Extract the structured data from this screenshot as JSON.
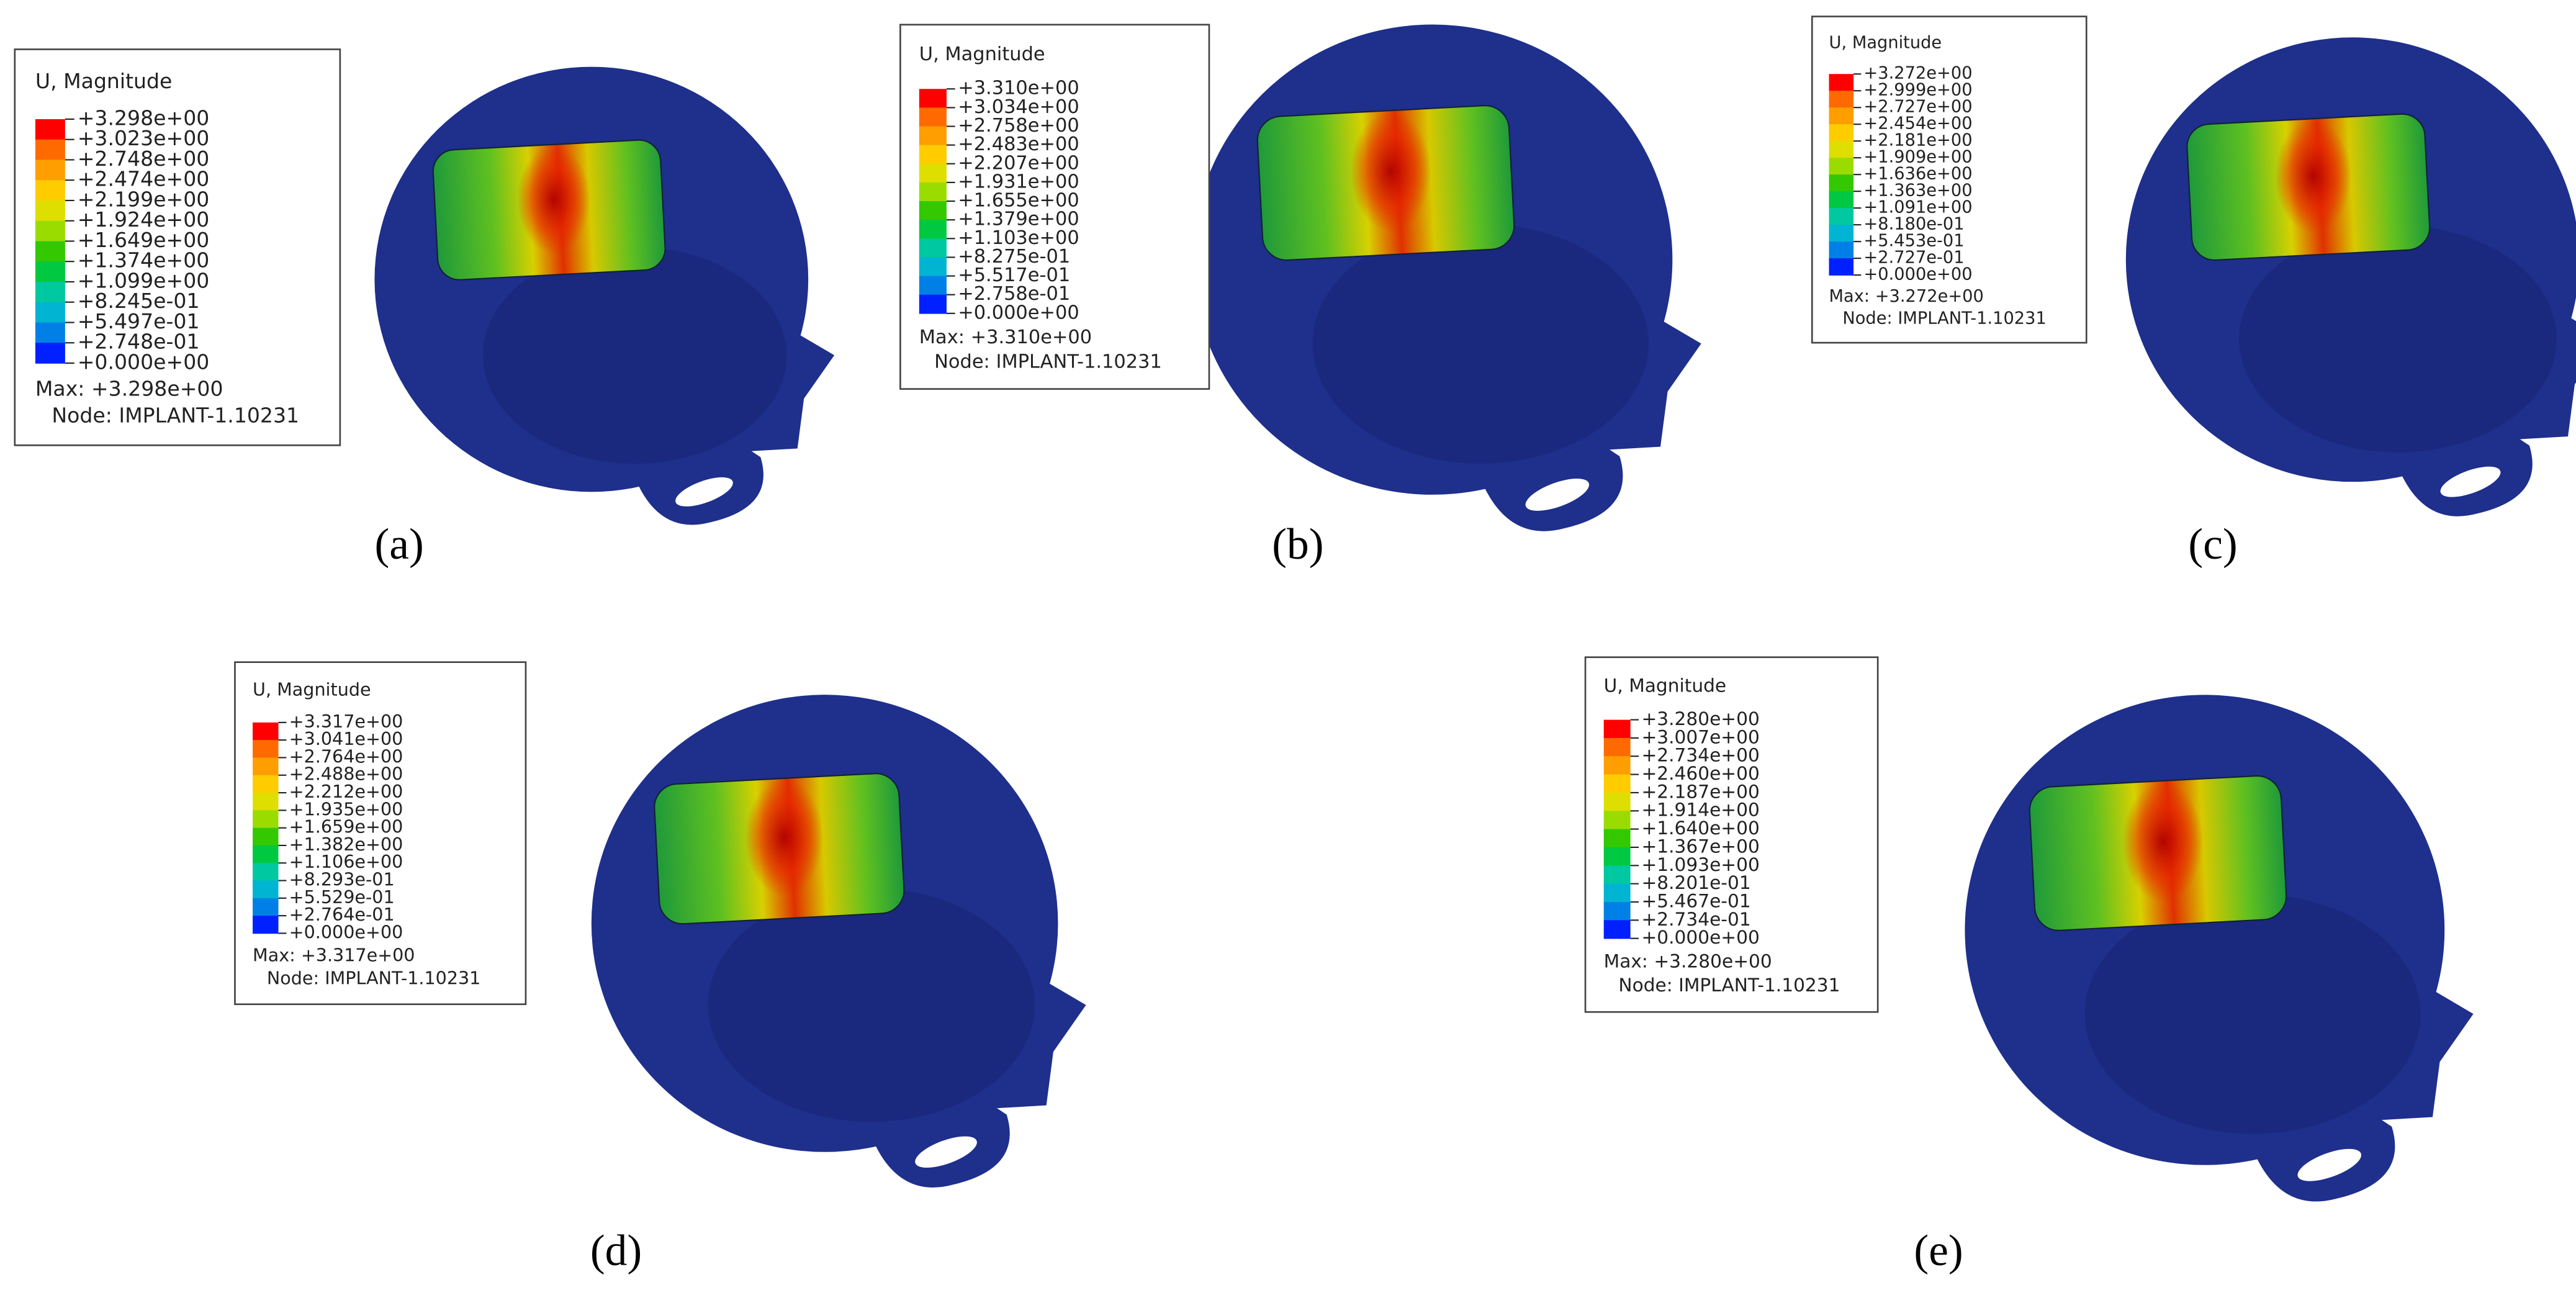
{
  "colormap": [
    "#ff0000",
    "#ff6a00",
    "#ff9e00",
    "#ffcc00",
    "#dede00",
    "#9bdc00",
    "#33c800",
    "#00c840",
    "#00c8a0",
    "#00b4d2",
    "#0080e6",
    "#0020ff"
  ],
  "panels": [
    {
      "caption": "(a)",
      "legend_title": "U, Magnitude",
      "legend": [
        "+3.298e+00",
        "+3.023e+00",
        "+2.748e+00",
        "+2.474e+00",
        "+2.199e+00",
        "+1.924e+00",
        "+1.649e+00",
        "+1.374e+00",
        "+1.099e+00",
        "+8.245e-01",
        "+5.497e-01",
        "+2.748e-01",
        "+0.000e+00"
      ],
      "max_label": "Max: +3.298e+00",
      "node_label": "Node: IMPLANT-1.10231"
    },
    {
      "caption": "(b)",
      "legend_title": "U, Magnitude",
      "legend": [
        "+3.310e+00",
        "+3.034e+00",
        "+2.758e+00",
        "+2.483e+00",
        "+2.207e+00",
        "+1.931e+00",
        "+1.655e+00",
        "+1.379e+00",
        "+1.103e+00",
        "+8.275e-01",
        "+5.517e-01",
        "+2.758e-01",
        "+0.000e+00"
      ],
      "max_label": "Max: +3.310e+00",
      "node_label": "Node: IMPLANT-1.10231"
    },
    {
      "caption": "(c)",
      "legend_title": "U, Magnitude",
      "legend": [
        "+3.272e+00",
        "+2.999e+00",
        "+2.727e+00",
        "+2.454e+00",
        "+2.181e+00",
        "+1.909e+00",
        "+1.636e+00",
        "+1.363e+00",
        "+1.091e+00",
        "+8.180e-01",
        "+5.453e-01",
        "+2.727e-01",
        "+0.000e+00"
      ],
      "max_label": "Max: +3.272e+00",
      "node_label": "Node: IMPLANT-1.10231"
    },
    {
      "caption": "(d)",
      "legend_title": "U, Magnitude",
      "legend": [
        "+3.317e+00",
        "+3.041e+00",
        "+2.764e+00",
        "+2.488e+00",
        "+2.212e+00",
        "+1.935e+00",
        "+1.659e+00",
        "+1.382e+00",
        "+1.106e+00",
        "+8.293e-01",
        "+5.529e-01",
        "+2.764e-01",
        "+0.000e+00"
      ],
      "max_label": "Max: +3.317e+00",
      "node_label": "Node: IMPLANT-1.10231"
    },
    {
      "caption": "(e)",
      "legend_title": "U, Magnitude",
      "legend": [
        "+3.280e+00",
        "+3.007e+00",
        "+2.734e+00",
        "+2.460e+00",
        "+2.187e+00",
        "+1.914e+00",
        "+1.640e+00",
        "+1.367e+00",
        "+1.093e+00",
        "+8.201e-01",
        "+5.467e-01",
        "+2.734e-01",
        "+0.000e+00"
      ],
      "max_label": "Max: +3.280e+00",
      "node_label": "Node: IMPLANT-1.10231"
    }
  ]
}
